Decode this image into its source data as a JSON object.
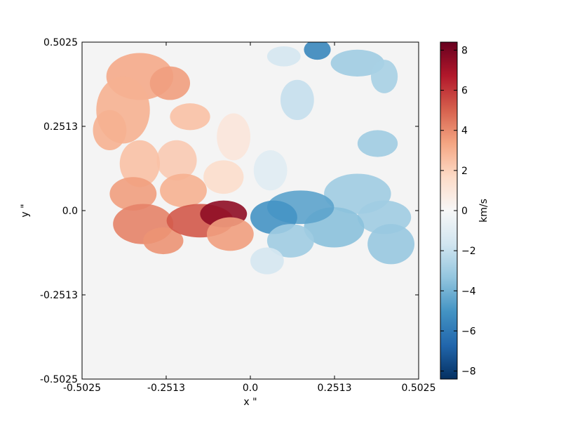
{
  "chart_data": {
    "type": "heatmap",
    "title": "",
    "xlabel": "x \"",
    "ylabel": "y \"",
    "xlim": [
      -0.5025,
      0.5025
    ],
    "ylim": [
      -0.5025,
      0.5025
    ],
    "x_ticks": [
      -0.5025,
      -0.2513,
      0.0,
      0.2513,
      0.5025
    ],
    "x_tick_labels": [
      "-0.5025",
      "-0.2513",
      "0.0",
      "0.2513",
      "0.5025"
    ],
    "y_ticks": [
      -0.5025,
      -0.2513,
      0.0,
      0.2513,
      0.5025
    ],
    "y_tick_labels": [
      "-0.5025",
      "-0.2513",
      "0.0",
      "0.2513",
      "0.5025"
    ],
    "grid": false,
    "background_color": "#f4f4f4",
    "colorbar": {
      "label": "km/s",
      "range": [
        -8.4,
        8.4
      ],
      "ticks": [
        8,
        6,
        4,
        2,
        0,
        -2,
        -4,
        -6,
        -8
      ],
      "tick_labels": [
        "8",
        "6",
        "4",
        "2",
        "0",
        "−2",
        "−4",
        "−6",
        "−8"
      ],
      "colormap": "RdBu_r",
      "colormap_stops": [
        "#053061",
        "#2166ac",
        "#4393c3",
        "#92c5de",
        "#d1e5f0",
        "#f7f7f7",
        "#fddbc7",
        "#f4a582",
        "#d6604d",
        "#b2182b",
        "#67001f"
      ]
    },
    "velocity_regions": [
      {
        "x": -0.33,
        "y": 0.4,
        "rx": 0.1,
        "ry": 0.07,
        "value": 3.2
      },
      {
        "x": -0.38,
        "y": 0.3,
        "rx": 0.08,
        "ry": 0.1,
        "value": 3.0
      },
      {
        "x": -0.24,
        "y": 0.38,
        "rx": 0.06,
        "ry": 0.05,
        "value": 3.5
      },
      {
        "x": -0.18,
        "y": 0.28,
        "rx": 0.06,
        "ry": 0.04,
        "value": 2.5
      },
      {
        "x": -0.22,
        "y": 0.15,
        "rx": 0.06,
        "ry": 0.06,
        "value": 2.2
      },
      {
        "x": -0.33,
        "y": 0.14,
        "rx": 0.06,
        "ry": 0.07,
        "value": 2.5
      },
      {
        "x": -0.42,
        "y": 0.24,
        "rx": 0.05,
        "ry": 0.06,
        "value": 3.0
      },
      {
        "x": -0.35,
        "y": 0.05,
        "rx": 0.07,
        "ry": 0.05,
        "value": 3.5
      },
      {
        "x": -0.32,
        "y": -0.04,
        "rx": 0.09,
        "ry": 0.06,
        "value": 4.2
      },
      {
        "x": -0.26,
        "y": -0.09,
        "rx": 0.06,
        "ry": 0.04,
        "value": 3.8
      },
      {
        "x": -0.2,
        "y": 0.06,
        "rx": 0.07,
        "ry": 0.05,
        "value": 3.0
      },
      {
        "x": -0.15,
        "y": -0.03,
        "rx": 0.1,
        "ry": 0.05,
        "value": 5.2
      },
      {
        "x": -0.08,
        "y": -0.01,
        "rx": 0.07,
        "ry": 0.04,
        "value": 7.5
      },
      {
        "x": -0.06,
        "y": -0.07,
        "rx": 0.07,
        "ry": 0.05,
        "value": 3.5
      },
      {
        "x": -0.08,
        "y": 0.1,
        "rx": 0.06,
        "ry": 0.05,
        "value": 1.5
      },
      {
        "x": -0.05,
        "y": 0.22,
        "rx": 0.05,
        "ry": 0.07,
        "value": 1.0
      },
      {
        "x": 0.06,
        "y": 0.12,
        "rx": 0.05,
        "ry": 0.06,
        "value": -1.0
      },
      {
        "x": 0.14,
        "y": 0.33,
        "rx": 0.05,
        "ry": 0.06,
        "value": -2.0
      },
      {
        "x": 0.1,
        "y": 0.46,
        "rx": 0.05,
        "ry": 0.03,
        "value": -1.5
      },
      {
        "x": 0.2,
        "y": 0.48,
        "rx": 0.04,
        "ry": 0.03,
        "value": -5.5
      },
      {
        "x": 0.32,
        "y": 0.44,
        "rx": 0.08,
        "ry": 0.04,
        "value": -3.0
      },
      {
        "x": 0.4,
        "y": 0.4,
        "rx": 0.04,
        "ry": 0.05,
        "value": -2.8
      },
      {
        "x": 0.38,
        "y": 0.2,
        "rx": 0.06,
        "ry": 0.04,
        "value": -3.0
      },
      {
        "x": 0.32,
        "y": 0.05,
        "rx": 0.1,
        "ry": 0.06,
        "value": -3.0
      },
      {
        "x": 0.4,
        "y": -0.02,
        "rx": 0.08,
        "ry": 0.05,
        "value": -3.0
      },
      {
        "x": 0.42,
        "y": -0.1,
        "rx": 0.07,
        "ry": 0.06,
        "value": -3.2
      },
      {
        "x": 0.25,
        "y": -0.05,
        "rx": 0.09,
        "ry": 0.06,
        "value": -3.5
      },
      {
        "x": 0.15,
        "y": 0.01,
        "rx": 0.1,
        "ry": 0.05,
        "value": -4.5
      },
      {
        "x": 0.07,
        "y": -0.02,
        "rx": 0.07,
        "ry": 0.05,
        "value": -5.0
      },
      {
        "x": 0.12,
        "y": -0.09,
        "rx": 0.07,
        "ry": 0.05,
        "value": -3.0
      },
      {
        "x": 0.05,
        "y": -0.15,
        "rx": 0.05,
        "ry": 0.04,
        "value": -1.5
      }
    ]
  }
}
